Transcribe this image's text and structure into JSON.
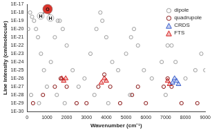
{
  "chart_data": {
    "type": "scatter",
    "x_label": "Wavenumber (cm⁻¹)",
    "y_label": "Line Intensity (cm/molecule)",
    "annotations": [
      "H",
      "O",
      "H"
    ],
    "log": "y",
    "grid": false,
    "legend": "upper right",
    "xlim": [
      0,
      9000
    ],
    "xticks": [
      0,
      1000,
      2000,
      3000,
      4000,
      5000,
      6000,
      7000,
      8000,
      9000
    ],
    "ylim": [
      1e-30,
      1e-17
    ],
    "yticks": [
      {
        "value": 1e-30,
        "label": "1E-30"
      },
      {
        "value": 1e-29,
        "label": "1E-29"
      },
      {
        "value": 1e-28,
        "label": "1E-28"
      },
      {
        "value": 1e-27,
        "label": "1E-27"
      },
      {
        "value": 1e-26,
        "label": "1E-26"
      },
      {
        "value": 1e-25,
        "label": "1E-25"
      },
      {
        "value": 1e-24,
        "label": "1E-24"
      },
      {
        "value": 1e-23,
        "label": "1E-23"
      },
      {
        "value": 1e-22,
        "label": "1E-22"
      },
      {
        "value": 1e-21,
        "label": "1E-21"
      },
      {
        "value": 1e-20,
        "label": "1E-20"
      },
      {
        "value": 1e-19,
        "label": "1E-19"
      },
      {
        "value": 1e-18,
        "label": "1E-18"
      },
      {
        "value": 1e-17,
        "label": "1E-17"
      }
    ],
    "series": [
      {
        "name": "dipole",
        "color": "#a0a0a0",
        "marker": "circle",
        "x": [
          50,
          150,
          250,
          350,
          450,
          550,
          700,
          850,
          1000,
          200,
          600,
          1200,
          1400,
          1550,
          1650,
          1800,
          2000,
          2300,
          2600,
          1500,
          1900,
          2900,
          3200,
          3500,
          3700,
          3800,
          4000,
          4300,
          3400,
          4100,
          4600,
          5000,
          5250,
          5400,
          5600,
          5900,
          5200,
          6300,
          6800,
          7100,
          7300,
          7500,
          7000,
          8000,
          8500,
          8800,
          9000
        ],
        "values": [
          1e-20,
          1e-18,
          3e-19,
          1e-19,
          1e-20,
          1e-21,
          1e-23,
          1e-25,
          1e-27,
          1e-28,
          1e-29,
          1e-24,
          1e-21,
          1e-19,
          1e-19,
          1e-20,
          1e-22,
          1e-25,
          1e-27,
          1e-28,
          1e-29,
          1e-26,
          1e-23,
          1e-20,
          1e-18,
          1e-19,
          1e-21,
          1e-24,
          1e-28,
          1e-29,
          1e-25,
          1e-23,
          1e-21,
          1e-20,
          1e-22,
          1e-25,
          1e-28,
          1e-26,
          1e-24,
          1e-22,
          1e-22,
          1e-24,
          1e-28,
          1e-26,
          1e-25,
          1e-23,
          1e-25
        ]
      },
      {
        "name": "quadrupole",
        "color": "#8b1a1a",
        "marker": "circle",
        "x": [
          300,
          800,
          1400,
          1700,
          2000,
          2500,
          3000,
          3600,
          3900,
          4200,
          4700,
          5300,
          5600,
          6000,
          6900,
          7100,
          7300,
          7800,
          8600
        ],
        "values": [
          1e-29,
          1e-28,
          1e-27,
          1e-26,
          1e-27,
          1e-29,
          1e-29,
          1e-27,
          3e-26,
          1e-27,
          1e-29,
          1e-28,
          1e-27,
          1e-29,
          1e-27,
          1e-26,
          1e-27,
          1e-29,
          1e-29
        ]
      },
      {
        "name": "CRDS",
        "color": "#3a5fcd",
        "marker": "triangle",
        "x": [
          7350,
          7450,
          7550,
          7650
        ],
        "values": [
          3e-27,
          1e-26,
          5e-27,
          2e-27
        ]
      },
      {
        "name": "FTS",
        "color": "#d62020",
        "marker": "triangle",
        "x": [
          1750,
          1850,
          1950,
          3750,
          3900,
          4000,
          7100,
          7200
        ],
        "values": [
          1e-26,
          5e-27,
          1e-26,
          3e-27,
          1e-26,
          5e-27,
          5e-27,
          2e-27
        ]
      }
    ]
  }
}
